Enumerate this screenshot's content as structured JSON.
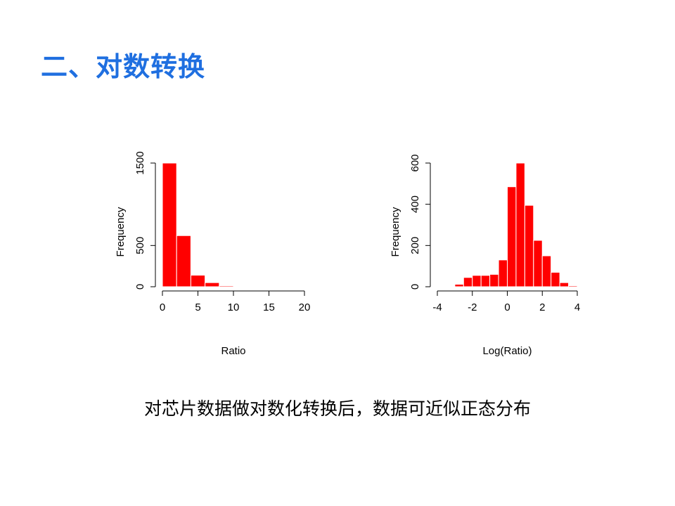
{
  "slide": {
    "title": "二、对数转换",
    "caption": "对芯片数据做对数化转换后，数据可近似正态分布"
  },
  "colors": {
    "title": "#1f6fe0",
    "bar": "#ff0000"
  },
  "chart_data": [
    {
      "type": "bar",
      "subtype": "histogram",
      "xlabel": "Ratio",
      "ylabel": "Frequency",
      "bin_edges": [
        0,
        2,
        4,
        6,
        8,
        10,
        12
      ],
      "values": [
        1500,
        620,
        140,
        50,
        12,
        3
      ],
      "xlim": [
        0,
        20
      ],
      "ylim": [
        0,
        1500
      ],
      "xticks": [
        0,
        5,
        10,
        15,
        20
      ],
      "yticks": [
        0,
        500,
        1500
      ],
      "grid": false
    },
    {
      "type": "bar",
      "subtype": "histogram",
      "xlabel": "Log(Ratio)",
      "ylabel": "Frequency",
      "bin_edges": [
        -3,
        -2.5,
        -2,
        -1.5,
        -1,
        -0.5,
        0,
        0.5,
        1,
        1.5,
        2,
        2.5,
        3,
        3.5,
        4
      ],
      "values": [
        12,
        45,
        55,
        55,
        60,
        130,
        485,
        600,
        395,
        225,
        150,
        70,
        20,
        5
      ],
      "xlim": [
        -4,
        4
      ],
      "ylim": [
        0,
        600
      ],
      "xticks": [
        -4,
        -2,
        0,
        2,
        4
      ],
      "yticks": [
        0,
        200,
        400,
        600
      ],
      "grid": false
    }
  ]
}
